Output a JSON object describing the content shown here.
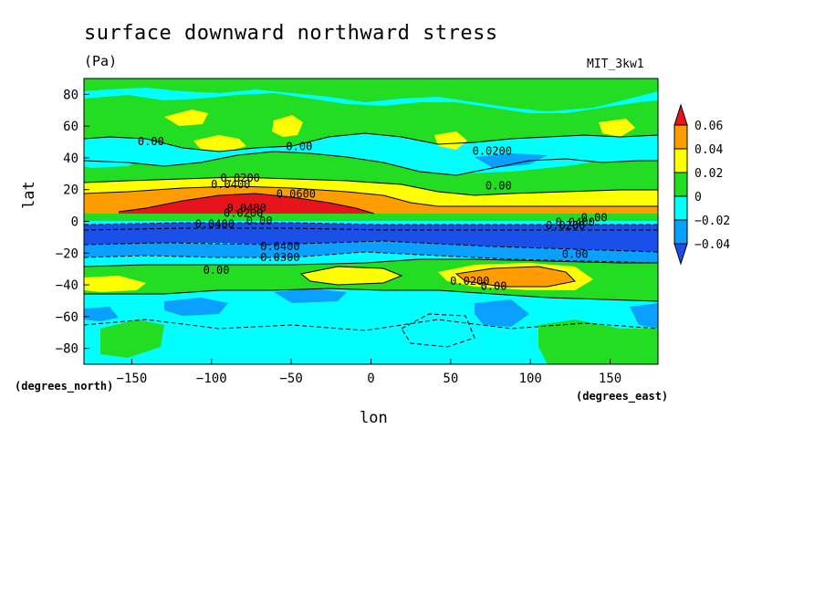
{
  "header": {
    "title": "surface downward northward stress",
    "units": "(Pa)",
    "model": "MIT_3kw1"
  },
  "chart_data": {
    "type": "heatmap",
    "title": "surface downward northward stress",
    "units": "(Pa)",
    "xlabel": "lon",
    "ylabel": "lat",
    "x_units": "(degrees_east)",
    "y_units": "(degrees_north)",
    "xlim": [
      -180,
      180
    ],
    "ylim": [
      -90,
      90
    ],
    "xticks": [
      "-150",
      "-100",
      "-50",
      "0",
      "50",
      "100",
      "150"
    ],
    "yticks": [
      "80",
      "60",
      "40",
      "20",
      "0",
      "-20",
      "-40",
      "-60",
      "-80"
    ],
    "colorbar": {
      "levels": [
        "0.06",
        "0.04",
        "0.02",
        "0",
        "-0.02",
        "-0.04"
      ],
      "colors": [
        "#e8141c",
        "#ff9d00",
        "#ffff00",
        "#22dd22",
        "#00ffff",
        "#0aa0ff",
        "#1a4fe8"
      ]
    },
    "contour_labels": [
      "0.00",
      "0.00",
      "0.0200",
      "0.0400",
      "0.0600",
      "0.0400",
      "0.0200",
      "0.00",
      "0.0400",
      "0.0400",
      "0.0300",
      "0.0400",
      "0.0200",
      "0.00",
      "0.0200",
      "0.00",
      "0.00",
      "0.0200",
      "0.00",
      "0.00"
    ]
  }
}
